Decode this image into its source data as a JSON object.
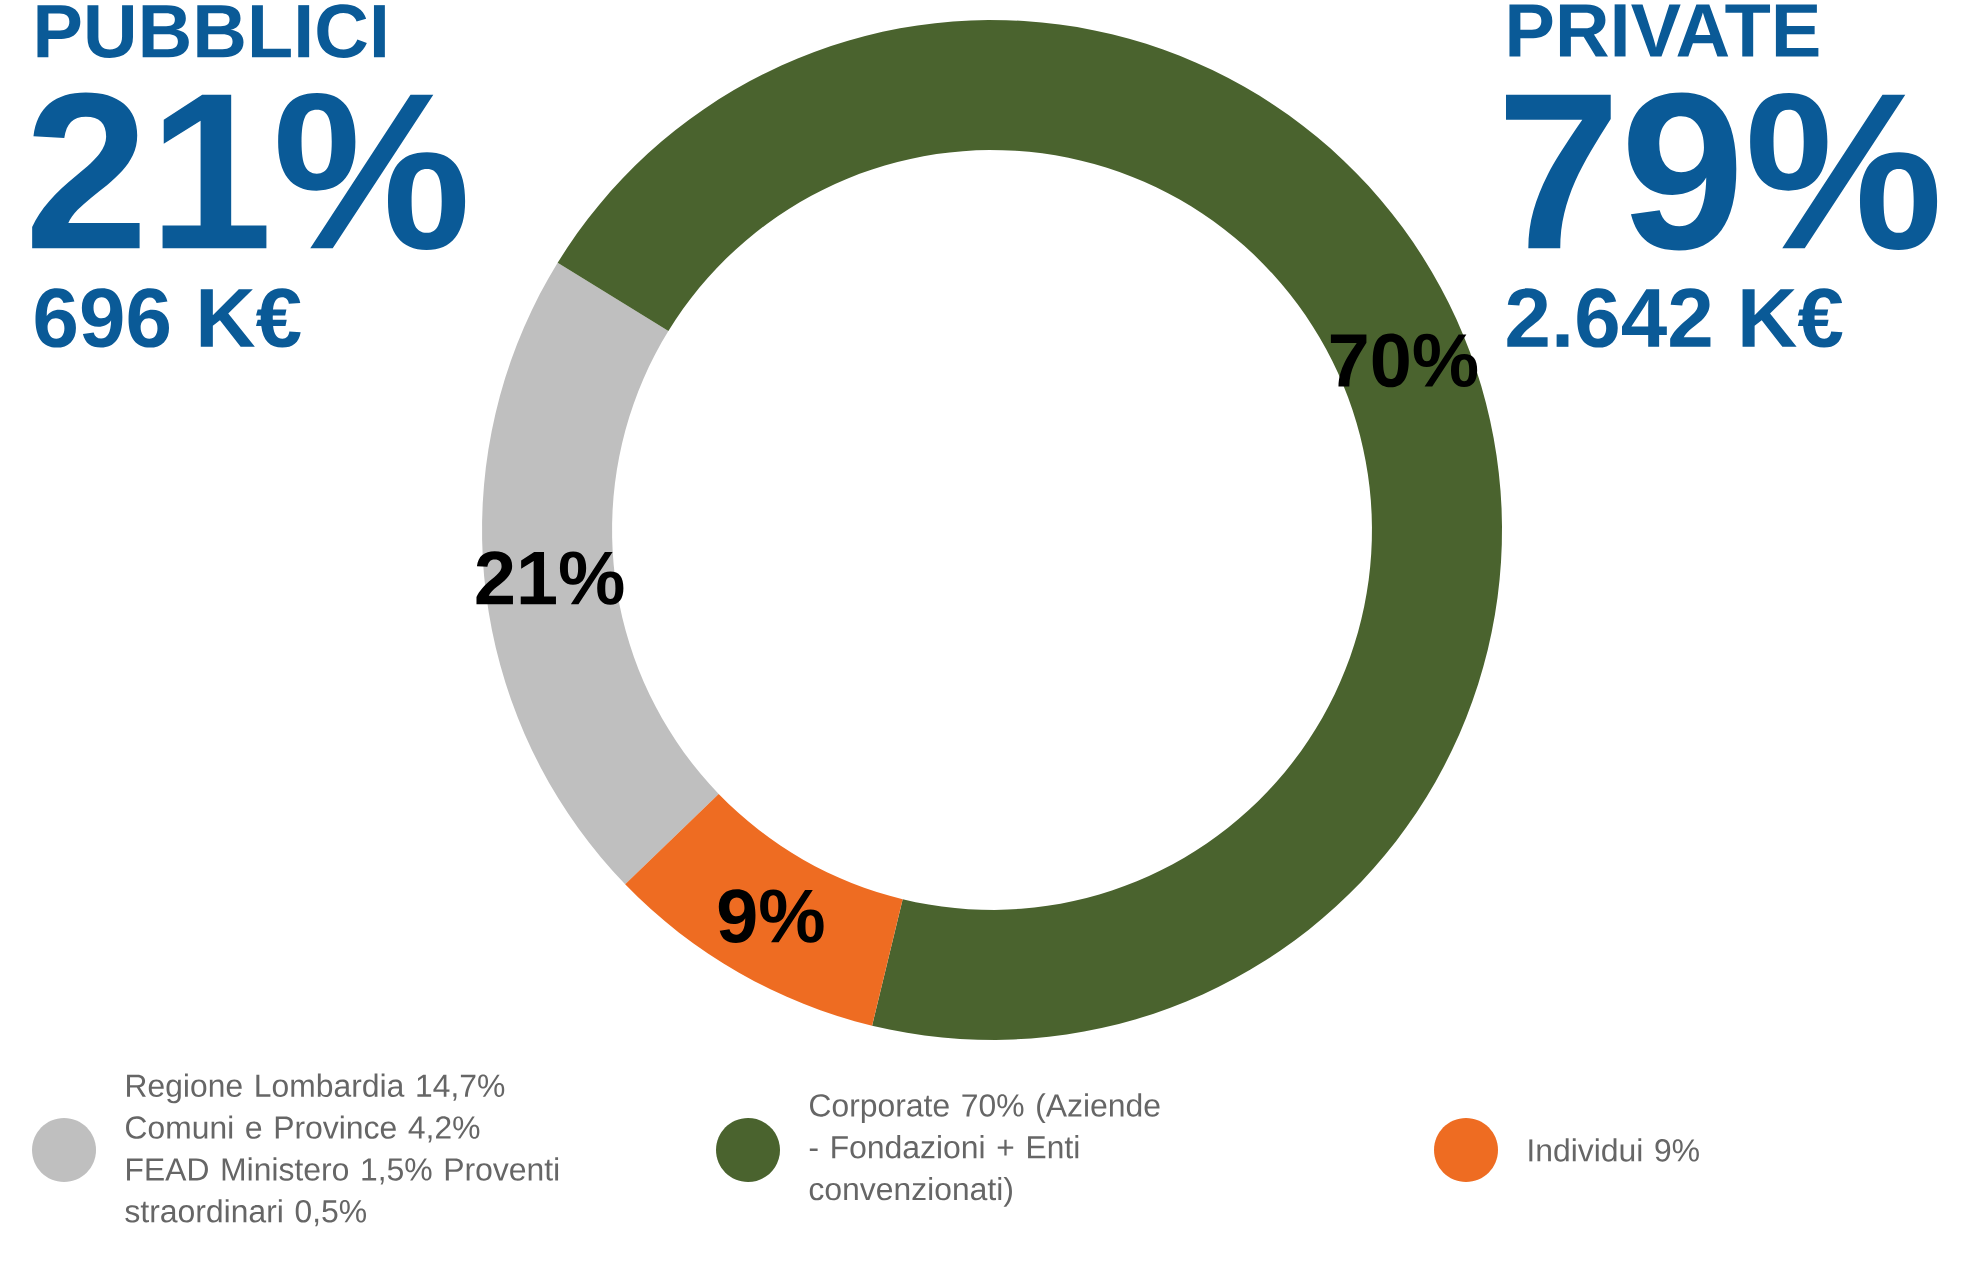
{
  "chart_data": {
    "type": "donut",
    "categories": [
      "Regione Lombardia 14,7% Comuni e Province 4,2% FEAD Ministero 1,5% Proventi straordinari 0,5%",
      "Corporate 70% (Aziende - Fondazioni + Enti convenzionati)",
      "Individui 9%"
    ],
    "values": [
      21,
      70,
      9
    ],
    "colors": [
      "#bfbfbf",
      "#4a632e",
      "#ee6c22"
    ],
    "value_labels": [
      "21%",
      "70%",
      "9%"
    ],
    "legend": "bottom",
    "annotations": [
      "PUBBLICI",
      "21%",
      "696 K€",
      "PRIVATE",
      "79%",
      "2.642 K€"
    ]
  }
}
